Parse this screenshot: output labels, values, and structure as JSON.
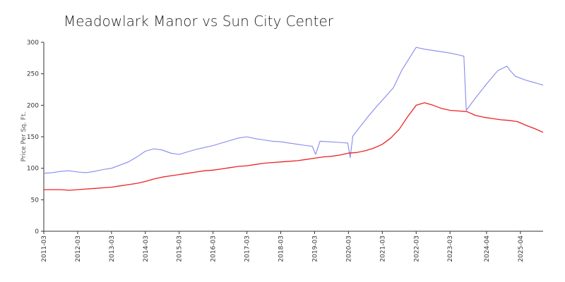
{
  "chart_data": {
    "type": "line",
    "title": "Meadowlark Manor vs Sun City Center",
    "xlabel": "",
    "ylabel": "Price Per Sq. Ft.",
    "ylim": [
      0,
      300
    ],
    "yticks": [
      0,
      50,
      100,
      150,
      200,
      250,
      300
    ],
    "xlim": [
      2011.17,
      2025.92
    ],
    "xticks": [
      {
        "label": "2011-03",
        "value": 2011.17
      },
      {
        "label": "2012-03",
        "value": 2012.17
      },
      {
        "label": "2013-03",
        "value": 2013.17
      },
      {
        "label": "2014-03",
        "value": 2014.17
      },
      {
        "label": "2015-03",
        "value": 2015.17
      },
      {
        "label": "2016-03",
        "value": 2016.17
      },
      {
        "label": "2017-03",
        "value": 2017.17
      },
      {
        "label": "2018-03",
        "value": 2018.17
      },
      {
        "label": "2019-03",
        "value": 2019.17
      },
      {
        "label": "2020-03",
        "value": 2020.17
      },
      {
        "label": "2021-03",
        "value": 2021.17
      },
      {
        "label": "2022-03",
        "value": 2022.17
      },
      {
        "label": "2023-03",
        "value": 2023.17
      },
      {
        "label": "2024-04",
        "value": 2024.25
      },
      {
        "label": "2025-04",
        "value": 2025.25
      }
    ],
    "grid": false,
    "legend": "none",
    "series": [
      {
        "color": "#8888ee",
        "x": [
          2011.17,
          2011.42,
          2011.67,
          2011.92,
          2012.17,
          2012.42,
          2012.67,
          2012.92,
          2013.17,
          2013.42,
          2013.67,
          2013.92,
          2014.17,
          2014.42,
          2014.67,
          2014.92,
          2015.17,
          2015.42,
          2015.67,
          2015.92,
          2016.17,
          2016.42,
          2016.67,
          2016.92,
          2017.17,
          2017.42,
          2017.67,
          2017.92,
          2018.17,
          2018.42,
          2018.67,
          2018.92,
          2019.1,
          2019.2,
          2019.33,
          2019.6,
          2019.9,
          2020.15,
          2020.22,
          2020.3,
          2020.5,
          2020.75,
          2021.0,
          2021.25,
          2021.5,
          2021.75,
          2022.17,
          2022.42,
          2022.67,
          2022.92,
          2023.17,
          2023.42,
          2023.58,
          2023.65,
          2023.9,
          2024.25,
          2024.58,
          2024.85,
          2024.95,
          2025.1,
          2025.4,
          2025.6,
          2025.92
        ],
        "values": [
          92,
          93,
          95,
          96,
          94,
          93,
          95,
          98,
          100,
          105,
          110,
          118,
          127,
          131,
          129,
          124,
          122,
          126,
          130,
          133,
          136,
          140,
          144,
          148,
          150,
          147,
          145,
          143,
          142,
          140,
          138,
          136,
          135,
          122,
          143,
          142,
          141,
          140,
          117,
          151,
          165,
          182,
          198,
          213,
          228,
          256,
          292,
          289,
          287,
          285,
          283,
          280,
          278,
          192,
          210,
          234,
          255,
          262,
          255,
          246,
          240,
          237,
          232
        ]
      },
      {
        "color": "#ee2222",
        "x": [
          2011.17,
          2011.42,
          2011.67,
          2011.92,
          2012.17,
          2012.42,
          2012.67,
          2012.92,
          2013.17,
          2013.42,
          2013.67,
          2013.92,
          2014.17,
          2014.42,
          2014.67,
          2014.92,
          2015.17,
          2015.42,
          2015.67,
          2015.92,
          2016.17,
          2016.42,
          2016.67,
          2016.92,
          2017.17,
          2017.42,
          2017.67,
          2017.92,
          2018.17,
          2018.42,
          2018.67,
          2018.92,
          2019.17,
          2019.42,
          2019.67,
          2019.92,
          2020.17,
          2020.42,
          2020.67,
          2020.92,
          2021.17,
          2021.42,
          2021.67,
          2021.92,
          2022.17,
          2022.42,
          2022.67,
          2022.92,
          2023.17,
          2023.42,
          2023.67,
          2023.92,
          2024.17,
          2024.42,
          2024.67,
          2024.92,
          2025.17,
          2025.42,
          2025.67,
          2025.92
        ],
        "values": [
          66,
          66,
          66,
          65,
          66,
          67,
          68,
          69,
          70,
          72,
          74,
          76,
          79,
          83,
          86,
          88,
          90,
          92,
          94,
          96,
          97,
          99,
          101,
          103,
          104,
          106,
          108,
          109,
          110,
          111,
          112,
          114,
          116,
          118,
          119,
          121,
          124,
          125,
          128,
          132,
          138,
          148,
          162,
          182,
          200,
          204,
          200,
          195,
          192,
          191,
          190,
          184,
          181,
          179,
          177,
          176,
          174,
          168,
          163,
          157
        ]
      }
    ]
  }
}
